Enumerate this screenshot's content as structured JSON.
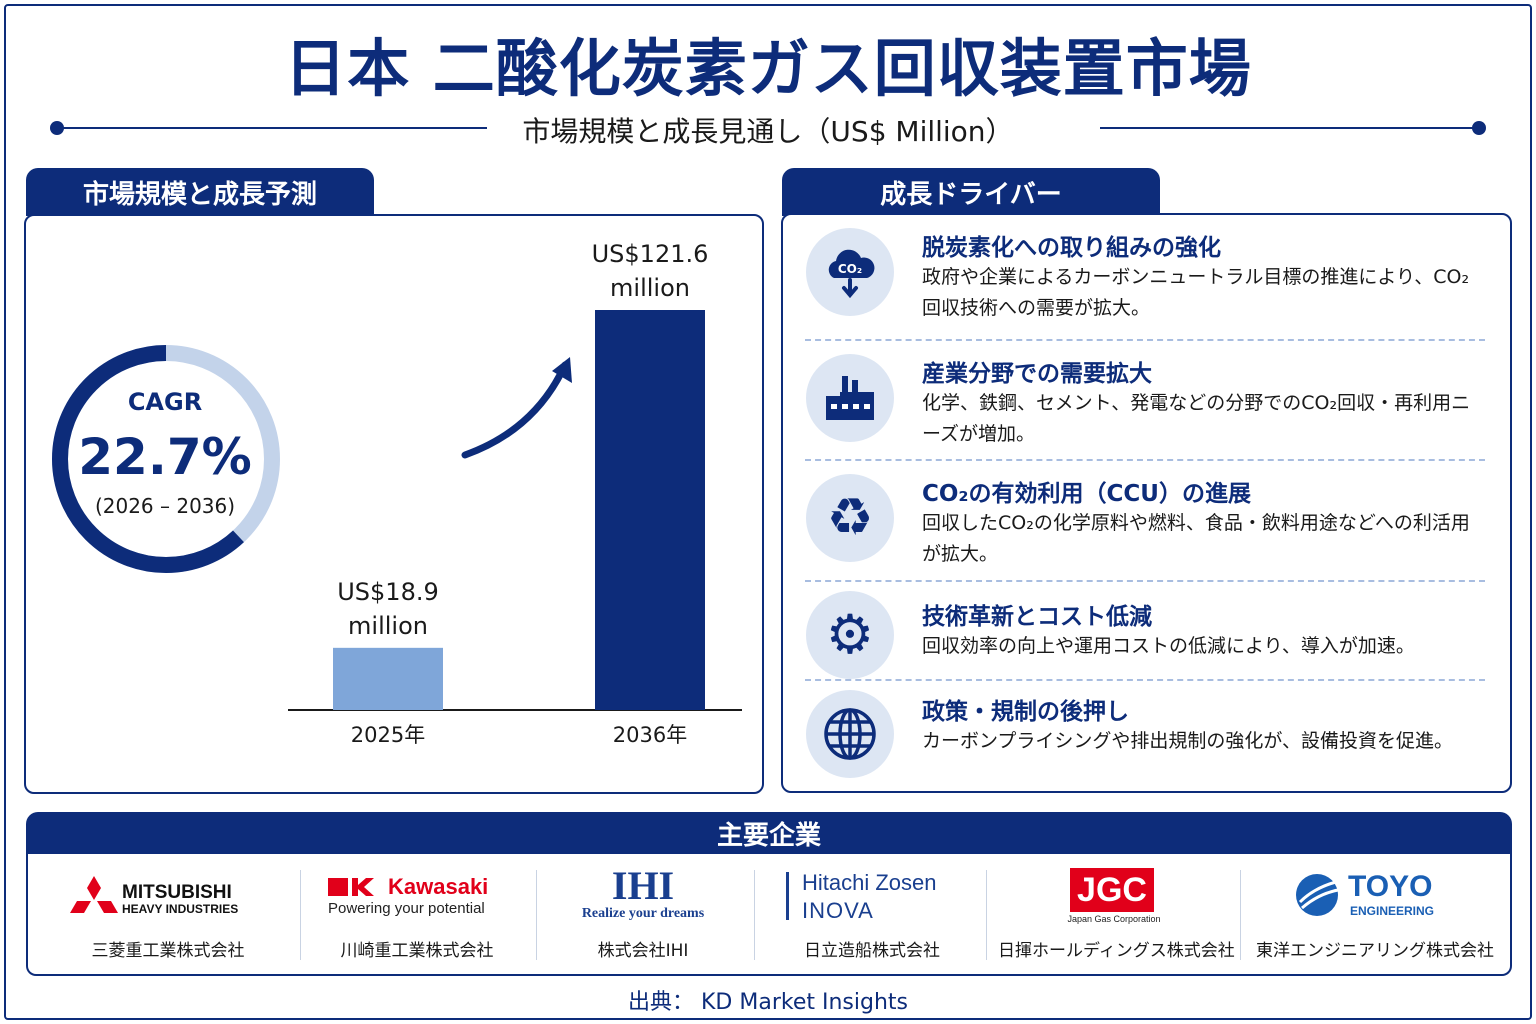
{
  "title": "日本 二酸化炭素ガス回収装置市場",
  "subtitle": "市場規模と成長見通し（US$ Million）",
  "left_panel": {
    "tab": "市場規模と成長予測",
    "cagr_label": "CAGR",
    "cagr_value": "22.7%",
    "cagr_range": "(2026 – 2036)",
    "cagr_fraction": 0.227
  },
  "chart_data": {
    "type": "bar",
    "categories": [
      "2025年",
      "2036年"
    ],
    "values": [
      18.9,
      121.6
    ],
    "value_labels": [
      [
        "US$18.9",
        "million"
      ],
      [
        "US$121.6",
        "million"
      ]
    ],
    "colors": [
      "#7fa6d9",
      "#0d2c7a"
    ],
    "title": "",
    "xlabel": "",
    "ylabel": ""
  },
  "drivers": {
    "tab": "成長ドライバー",
    "items": [
      {
        "icon": "co2-cloud-icon",
        "title": "脱炭素化への取り組みの強化",
        "desc": "政府や企業によるカーボンニュートラル目標の推進により、CO₂回収技術への需要が拡大。"
      },
      {
        "icon": "factory-icon",
        "title": "産業分野での需要拡大",
        "desc": "化学、鉄鋼、セメント、発電などの分野でのCO₂回収・再利用ニーズが増加。"
      },
      {
        "icon": "recycle-icon",
        "title": "CO₂の有効利用（CCU）の進展",
        "desc": "回収したCO₂の化学原料や燃料、食品・飲料用途などへの利活用が拡大。"
      },
      {
        "icon": "gear-icon",
        "title": "技術革新とコスト低減",
        "desc": "回収効率の向上や運用コストの低減により、導入が加速。"
      },
      {
        "icon": "globe-icon",
        "title": "政策・規制の後押し",
        "desc": "カーボンプライシングや排出規制の強化が、設備投資を促進。"
      }
    ]
  },
  "companies": {
    "header": "主要企業",
    "items": [
      {
        "logo_line1": "MITSUBISHI",
        "logo_line2": "HEAVY INDUSTRIES",
        "name": "三菱重工業株式会社"
      },
      {
        "logo_line1": "Kawasaki",
        "logo_line2": "Powering your potential",
        "name": "川崎重工業株式会社"
      },
      {
        "logo_line1": "IHI",
        "logo_line2": "Realize your dreams",
        "name": "株式会社IHI"
      },
      {
        "logo_line1": "Hitachi Zosen",
        "logo_line2": "INOVA",
        "name": "日立造船株式会社"
      },
      {
        "logo_line1": "JGC",
        "logo_line2": "Japan Gas Corporation",
        "name": "日揮ホールディングス株式会社"
      },
      {
        "logo_line1": "TOYO",
        "logo_line2": "ENGINEERING",
        "name": "東洋エンジニアリング株式会社"
      }
    ]
  },
  "source": "出典： KD Market Insights"
}
